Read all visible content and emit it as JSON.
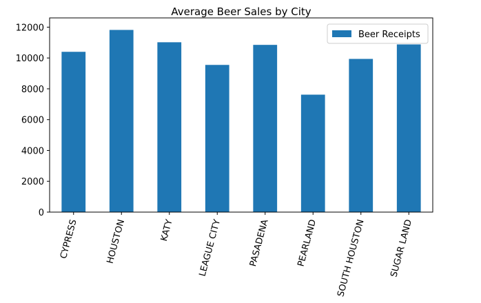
{
  "chart_data": {
    "type": "bar",
    "title": "Average Beer Sales by City",
    "xlabel": "",
    "ylabel": "",
    "categories": [
      "CYPRESS",
      "HOUSTON",
      "KATY",
      "LEAGUE CITY",
      "PASADENA",
      "PEARLAND",
      "SOUTH HOUSTON",
      "SUGAR LAND"
    ],
    "series": [
      {
        "name": "Beer Receipts",
        "color": "#1f77b4",
        "values": [
          10400,
          11820,
          11020,
          9550,
          10850,
          7620,
          9940,
          10880
        ]
      }
    ],
    "ylim": [
      0,
      12600
    ],
    "yticks": [
      0,
      2000,
      4000,
      6000,
      8000,
      10000,
      12000
    ],
    "grid": false,
    "legend_position": "top-right",
    "x_tick_rotation": "75-degrees"
  }
}
